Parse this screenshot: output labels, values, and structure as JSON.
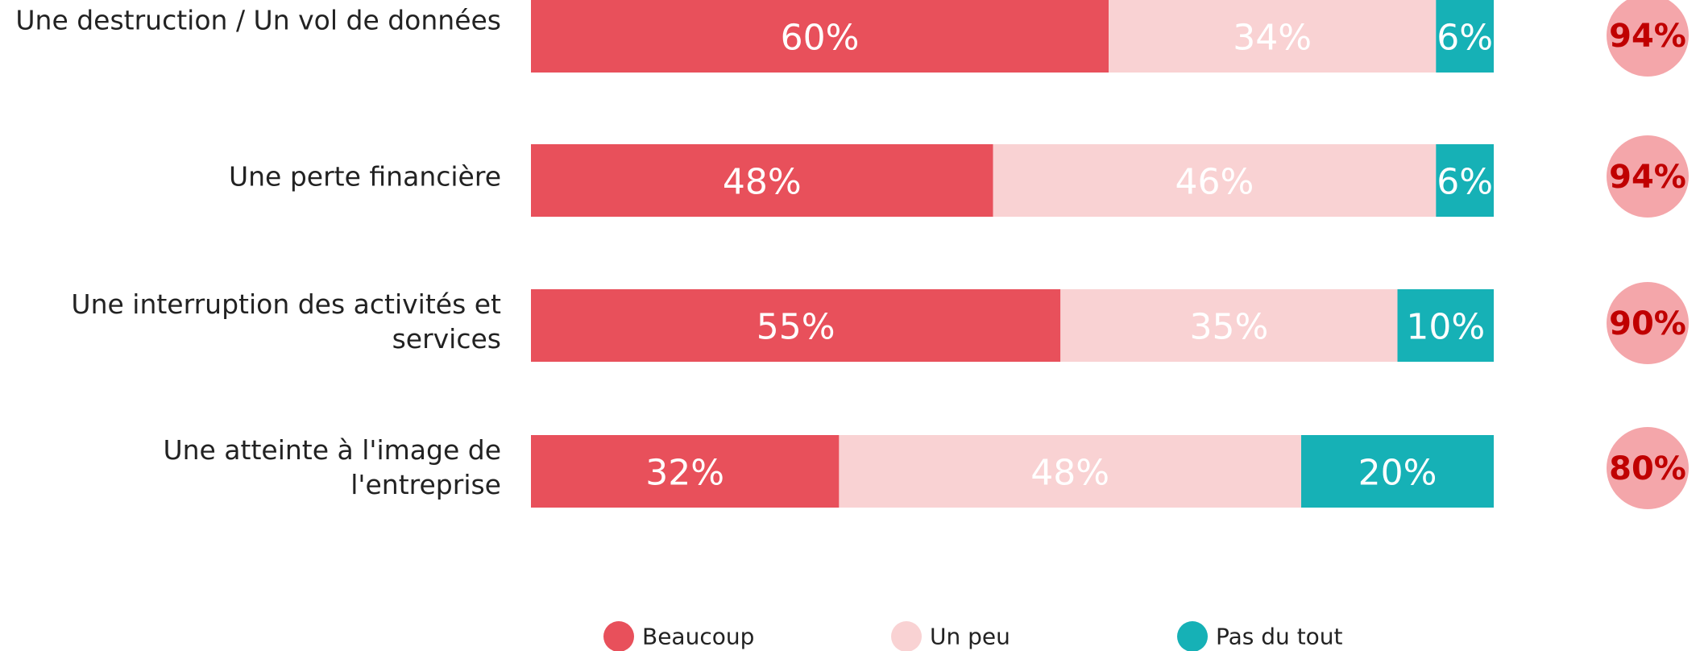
{
  "chart_data": {
    "type": "stacked-bar-horizontal",
    "categories": [
      "Une destruction / Un vol de données",
      "Une perte financière",
      "Une interruption des activités et services",
      "Une atteinte à l'image de l'entreprise"
    ],
    "series": [
      {
        "name": "Beaucoup",
        "color": "#e8505b",
        "values": [
          60,
          48,
          55,
          32
        ],
        "value_labels": [
          "60%",
          "48%",
          "55%",
          "32%"
        ]
      },
      {
        "name": "Un peu",
        "color": "#f9d2d3",
        "values": [
          34,
          46,
          35,
          48
        ],
        "value_labels": [
          "34%",
          "46%",
          "35%",
          "48%"
        ]
      },
      {
        "name": "Pas du tout",
        "color": "#16b1b6",
        "values": [
          6,
          6,
          10,
          20
        ],
        "value_labels": [
          "6%",
          "6%",
          "10%",
          "20%"
        ]
      }
    ],
    "totals": {
      "color": "#f4a6aa",
      "values": [
        94,
        94,
        90,
        80
      ],
      "value_labels": [
        "94%",
        "94%",
        "90%",
        "80%"
      ]
    },
    "xlim": [
      0,
      100
    ],
    "legend": "bottom"
  }
}
